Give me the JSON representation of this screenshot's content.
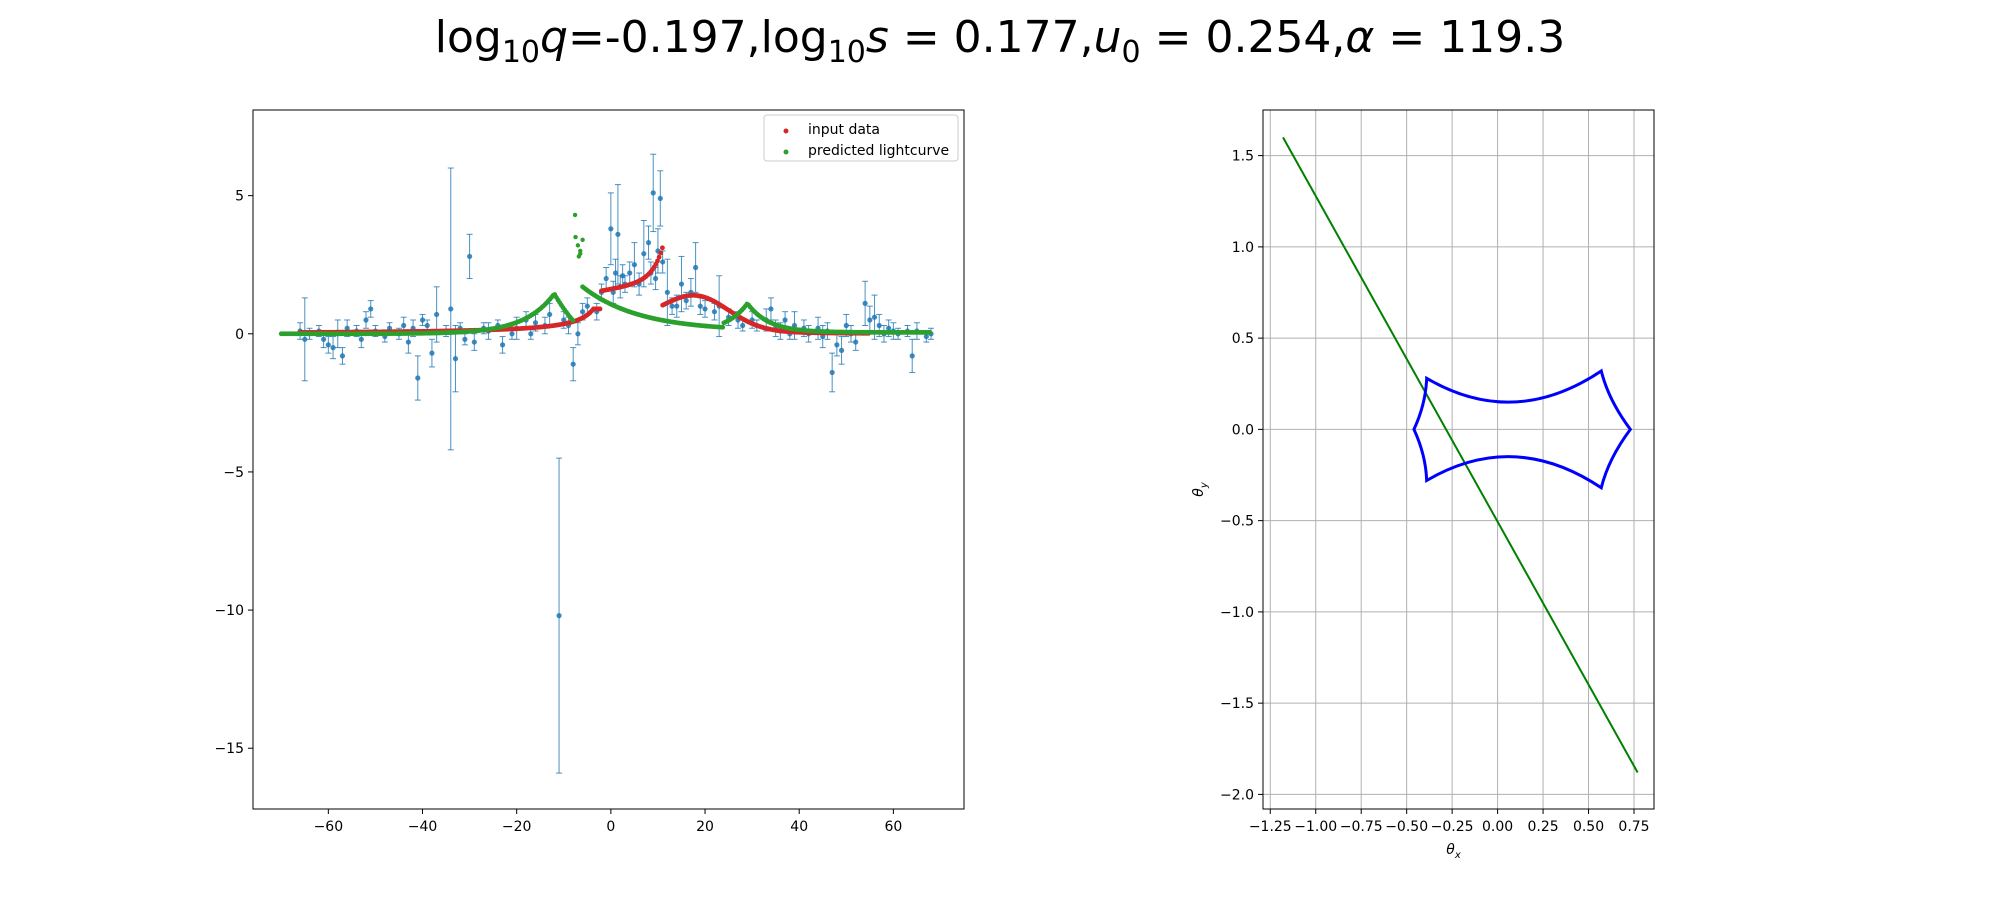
{
  "suptitle": {
    "p1": "log",
    "sub1": "10",
    "p2": "q",
    "p3": "=-0.197,log",
    "sub2": "10",
    "p4": "s",
    "p5": " = 0.177,",
    "p6": "u",
    "sub3": "0",
    "p7": " = 0.254,",
    "p8": "α",
    "p9": " = 119.3"
  },
  "chart_data": [
    {
      "type": "scatter",
      "title": "",
      "xlabel": "",
      "ylabel": "",
      "xlim": [
        -76,
        75
      ],
      "ylim": [
        -17.2,
        8.1
      ],
      "grid": false,
      "legend": {
        "placement": "top-right",
        "entries": [
          "input data",
          "predicted lightcurve"
        ]
      },
      "xticks": [
        -60,
        -40,
        -20,
        0,
        20,
        40,
        60
      ],
      "xtick_labels": [
        "−60",
        "−40",
        "−20",
        "0",
        "20",
        "40",
        "60"
      ],
      "yticks": [
        5,
        0,
        -5,
        -10,
        -15
      ],
      "ytick_labels": [
        "5",
        "0",
        "−5",
        "−10",
        "−15"
      ],
      "series": [
        {
          "name": "observations",
          "kind": "errorbar",
          "color": "#1f77b4",
          "points": [
            [
              -66,
              0.1,
              0.3
            ],
            [
              -65,
              -0.2,
              1.5
            ],
            [
              -64,
              0.0,
              0.2
            ],
            [
              -62,
              0.1,
              0.2
            ],
            [
              -61,
              -0.2,
              0.3
            ],
            [
              -60,
              -0.4,
              0.3
            ],
            [
              -59,
              -0.5,
              0.4
            ],
            [
              -58,
              0.0,
              0.5
            ],
            [
              -57,
              -0.8,
              0.3
            ],
            [
              -56,
              0.2,
              0.3
            ],
            [
              -54,
              0.1,
              0.2
            ],
            [
              -53,
              -0.2,
              0.3
            ],
            [
              -52,
              0.5,
              0.3
            ],
            [
              -51,
              0.9,
              0.3
            ],
            [
              -50,
              0.1,
              0.2
            ],
            [
              -48,
              -0.1,
              0.2
            ],
            [
              -47,
              0.2,
              0.2
            ],
            [
              -45,
              0.0,
              0.2
            ],
            [
              -44,
              0.3,
              0.3
            ],
            [
              -43,
              -0.3,
              0.4
            ],
            [
              -42,
              0.2,
              0.3
            ],
            [
              -41,
              -1.6,
              0.8
            ],
            [
              -40,
              0.5,
              0.2
            ],
            [
              -39,
              0.3,
              0.2
            ],
            [
              -38,
              -0.7,
              0.5
            ],
            [
              -37,
              0.7,
              1.0
            ],
            [
              -35,
              0.1,
              0.2
            ],
            [
              -34,
              0.9,
              5.1
            ],
            [
              -33,
              -0.9,
              1.2
            ],
            [
              -32,
              0.2,
              0.2
            ],
            [
              -31,
              -0.2,
              0.2
            ],
            [
              -30,
              2.8,
              0.8
            ],
            [
              -29,
              -0.3,
              0.3
            ],
            [
              -27,
              0.2,
              0.2
            ],
            [
              -26,
              0.1,
              0.3
            ],
            [
              -24,
              0.3,
              0.2
            ],
            [
              -23,
              -0.4,
              0.3
            ],
            [
              -21,
              0.0,
              0.2
            ],
            [
              -20,
              0.2,
              0.4
            ],
            [
              -18,
              0.5,
              0.3
            ],
            [
              -17,
              0.0,
              0.2
            ],
            [
              -16,
              0.4,
              0.3
            ],
            [
              -14,
              0.3,
              0.3
            ],
            [
              -13,
              0.7,
              0.4
            ],
            [
              -11,
              -10.2,
              5.7
            ],
            [
              -10,
              0.5,
              0.3
            ],
            [
              -9,
              0.3,
              0.3
            ],
            [
              -8,
              -1.1,
              0.6
            ],
            [
              -7,
              0.0,
              0.4
            ],
            [
              -6,
              0.8,
              0.3
            ],
            [
              -5,
              1.0,
              0.3
            ],
            [
              -3,
              0.8,
              0.3
            ],
            [
              -2,
              1.5,
              0.3
            ],
            [
              -1,
              2.0,
              0.4
            ],
            [
              0,
              3.8,
              1.3
            ],
            [
              0.5,
              1.5,
              0.4
            ],
            [
              1,
              2.2,
              0.5
            ],
            [
              1.5,
              3.6,
              1.8
            ],
            [
              2,
              1.7,
              0.4
            ],
            [
              2.5,
              2.1,
              0.4
            ],
            [
              3,
              1.8,
              0.3
            ],
            [
              4,
              2.2,
              0.4
            ],
            [
              5,
              2.5,
              0.8
            ],
            [
              6,
              1.8,
              0.4
            ],
            [
              7,
              2.9,
              1.2
            ],
            [
              8,
              3.3,
              0.6
            ],
            [
              8.5,
              2.2,
              0.4
            ],
            [
              9,
              5.1,
              1.4
            ],
            [
              9.5,
              2.0,
              0.4
            ],
            [
              10,
              3.0,
              0.8
            ],
            [
              10.5,
              4.9,
              1.0
            ],
            [
              11,
              2.6,
              0.4
            ],
            [
              12,
              1.5,
              1.2
            ],
            [
              13,
              1.0,
              0.3
            ],
            [
              14,
              1.0,
              0.4
            ],
            [
              15,
              1.8,
              1.0
            ],
            [
              16,
              1.2,
              0.3
            ],
            [
              17,
              1.5,
              0.5
            ],
            [
              18,
              2.4,
              0.9
            ],
            [
              19,
              1.0,
              0.3
            ],
            [
              20,
              0.9,
              0.3
            ],
            [
              22,
              0.8,
              0.3
            ],
            [
              23,
              1.0,
              1.1
            ],
            [
              25,
              0.6,
              0.3
            ],
            [
              27,
              0.5,
              0.3
            ],
            [
              28,
              0.3,
              0.2
            ],
            [
              30,
              0.5,
              0.3
            ],
            [
              31,
              0.3,
              0.2
            ],
            [
              33,
              0.5,
              0.4
            ],
            [
              34,
              0.9,
              0.4
            ],
            [
              35,
              0.2,
              0.3
            ],
            [
              36,
              0.1,
              0.3
            ],
            [
              37,
              0.5,
              0.3
            ],
            [
              38,
              0.0,
              0.2
            ],
            [
              39,
              0.3,
              0.5
            ],
            [
              41,
              0.2,
              0.3
            ],
            [
              42,
              0.0,
              0.3
            ],
            [
              44,
              0.2,
              0.4
            ],
            [
              45,
              -0.1,
              0.4
            ],
            [
              46,
              0.1,
              0.3
            ],
            [
              47,
              -1.4,
              0.7
            ],
            [
              48,
              -0.4,
              0.4
            ],
            [
              49,
              -0.6,
              0.5
            ],
            [
              50,
              0.3,
              0.4
            ],
            [
              51,
              0.0,
              0.3
            ],
            [
              52,
              -0.3,
              0.3
            ],
            [
              54,
              1.1,
              0.8
            ],
            [
              55,
              0.5,
              0.5
            ],
            [
              56,
              0.6,
              0.8
            ],
            [
              57,
              0.3,
              0.4
            ],
            [
              58,
              0.0,
              0.3
            ],
            [
              59,
              0.2,
              0.3
            ],
            [
              60,
              0.1,
              0.3
            ],
            [
              61,
              0.0,
              0.2
            ],
            [
              63,
              0.1,
              0.2
            ],
            [
              64,
              -0.8,
              0.6
            ],
            [
              65,
              0.1,
              0.3
            ],
            [
              67,
              -0.1,
              0.2
            ],
            [
              68,
              0.0,
              0.2
            ]
          ]
        },
        {
          "name": "input data",
          "kind": "curve",
          "color": "#d62728",
          "segments": [
            {
              "x0": -66,
              "x1": -2,
              "fn": "powneg",
              "a": 0.75,
              "b": 0.9,
              "xc": 0
            },
            {
              "x0": -2,
              "x1": 11,
              "fn": "powpos",
              "a": 1.55,
              "b": 1.5,
              "xc": 11
            },
            {
              "x0": 11,
              "x1": 55,
              "fn": "bump",
              "a": 1.2,
              "c": 18,
              "w": 10
            }
          ]
        },
        {
          "name": "predicted lightcurve",
          "kind": "curve",
          "color": "#2ca02c",
          "segments": [
            {
              "x0": -70,
              "x1": -8,
              "fn": "peakL",
              "a": 1.45,
              "c": -12,
              "w": 14
            },
            {
              "x0": -6,
              "x1": 24,
              "fn": "decay",
              "a": 1.6,
              "c": -6,
              "w": 12
            },
            {
              "x0": 24,
              "x1": 68,
              "fn": "peakR",
              "a": 1.05,
              "c": 29,
              "w": 9
            }
          ],
          "extra_points": [
            [
              -7.6,
              4.3
            ],
            [
              -7.5,
              3.5
            ],
            [
              -7,
              3.2
            ],
            [
              -6.8,
              2.8
            ],
            [
              -6.5,
              3.0
            ],
            [
              -6,
              3.4
            ],
            [
              -6.5,
              2.9
            ]
          ]
        }
      ]
    },
    {
      "type": "line",
      "title": "",
      "xlabel": "θ",
      "xlabel_sub": "x",
      "ylabel": "θ",
      "ylabel_sub": "y",
      "xlim": [
        -1.29,
        0.86
      ],
      "ylim": [
        -2.08,
        1.75
      ],
      "grid": true,
      "xticks": [
        -1.25,
        -1.0,
        -0.75,
        -0.5,
        -0.25,
        0.0,
        0.25,
        0.5,
        0.75
      ],
      "xtick_labels": [
        "−1.25",
        "−1.00",
        "−0.75",
        "−0.50",
        "−0.25",
        "0.00",
        "0.25",
        "0.50",
        "0.75"
      ],
      "yticks": [
        1.5,
        1.0,
        0.5,
        0.0,
        -0.5,
        -1.0,
        -1.5,
        -2.0
      ],
      "ytick_labels": [
        "1.5",
        "1.0",
        "0.5",
        "0.0",
        "−0.5",
        "−1.0",
        "−1.5",
        "−2.0"
      ],
      "trajectory": {
        "color": "#008000",
        "x": [
          -1.18,
          0.77
        ],
        "y": [
          1.6,
          -1.88
        ]
      },
      "caustic": {
        "color": "#0000ff",
        "cusps": [
          [
            -0.46,
            0.0
          ],
          [
            -0.39,
            0.28
          ],
          [
            0.57,
            0.32
          ],
          [
            0.73,
            0.0
          ],
          [
            0.57,
            -0.32
          ],
          [
            -0.39,
            -0.28
          ]
        ],
        "edge_mid": [
          [
            -0.41,
            0.14
          ],
          [
            0.09,
            0.15
          ],
          [
            0.63,
            0.16
          ],
          [
            0.63,
            -0.16
          ],
          [
            0.09,
            -0.15
          ],
          [
            -0.41,
            -0.14
          ]
        ]
      }
    }
  ]
}
